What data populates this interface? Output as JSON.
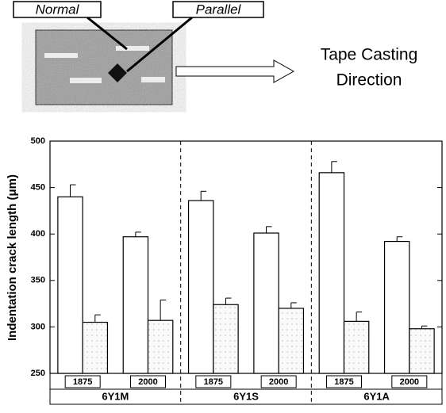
{
  "diagram": {
    "normal_label": "Normal",
    "parallel_label": "Parallel",
    "direction_label": [
      "Tape Casting",
      "Direction"
    ]
  },
  "chart_data": {
    "type": "bar",
    "y_label": "Indentation crack length (μm)",
    "groups": [
      "6Y1M",
      "6Y1S",
      "6Y1A"
    ],
    "categories": [
      "1875",
      "2000",
      "1875",
      "2000",
      "1875",
      "2000"
    ],
    "series": [
      {
        "color": "#ffffff",
        "values": [
          440,
          397,
          436,
          401,
          466,
          392
        ],
        "errors": [
          13,
          5,
          10,
          7,
          12,
          5
        ]
      },
      {
        "color": "#ffffff",
        "pattern": "dots",
        "values": [
          305,
          307,
          324,
          320,
          306,
          298
        ],
        "errors": [
          8,
          22,
          7,
          6,
          10,
          3
        ]
      }
    ],
    "ylim": [
      250,
      500
    ],
    "yticks": [
      250,
      300,
      350,
      400,
      450,
      500
    ]
  }
}
